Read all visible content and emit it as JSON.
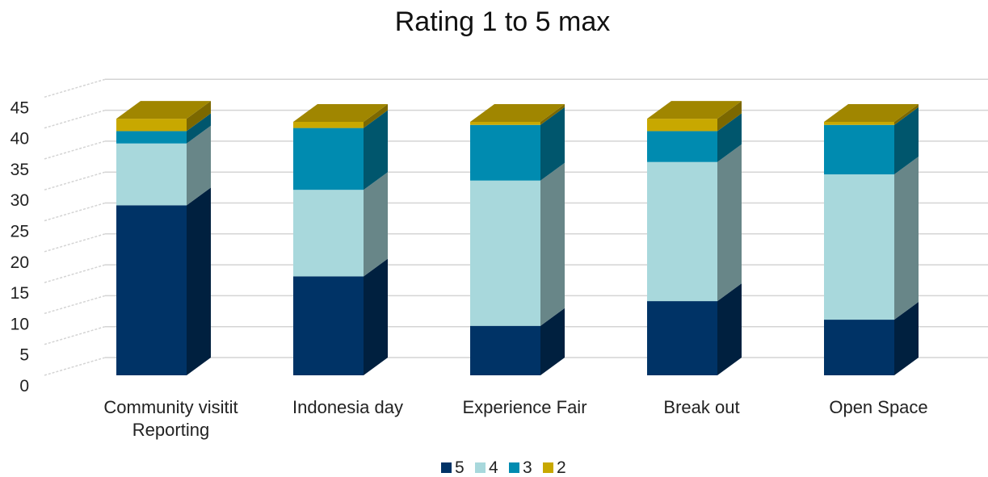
{
  "chart_data": {
    "type": "bar",
    "stacked": true,
    "three_d": true,
    "title": "Rating 1 to 5 max",
    "categories": [
      [
        "Community visitit",
        "Reporting"
      ],
      [
        "Indonesia day"
      ],
      [
        "Experience Fair"
      ],
      [
        "Break out"
      ],
      [
        "Open Space"
      ]
    ],
    "series": [
      {
        "name": "5",
        "color": "#003366",
        "values": [
          27.5,
          16,
          8,
          12,
          9
        ]
      },
      {
        "name": "4",
        "color": "#a8d8dc",
        "values": [
          10,
          14,
          23.5,
          22.5,
          23.5
        ]
      },
      {
        "name": "3",
        "color": "#008bb0",
        "values": [
          2,
          10,
          9,
          5,
          8
        ]
      },
      {
        "name": "2",
        "color": "#c8a800",
        "values": [
          2,
          1,
          0.5,
          2,
          0.5
        ]
      }
    ],
    "ylim": [
      0,
      45
    ],
    "yticks": [
      0,
      5,
      10,
      15,
      20,
      25,
      30,
      35,
      40,
      45
    ],
    "grid": true,
    "legend": "bottom-center"
  }
}
